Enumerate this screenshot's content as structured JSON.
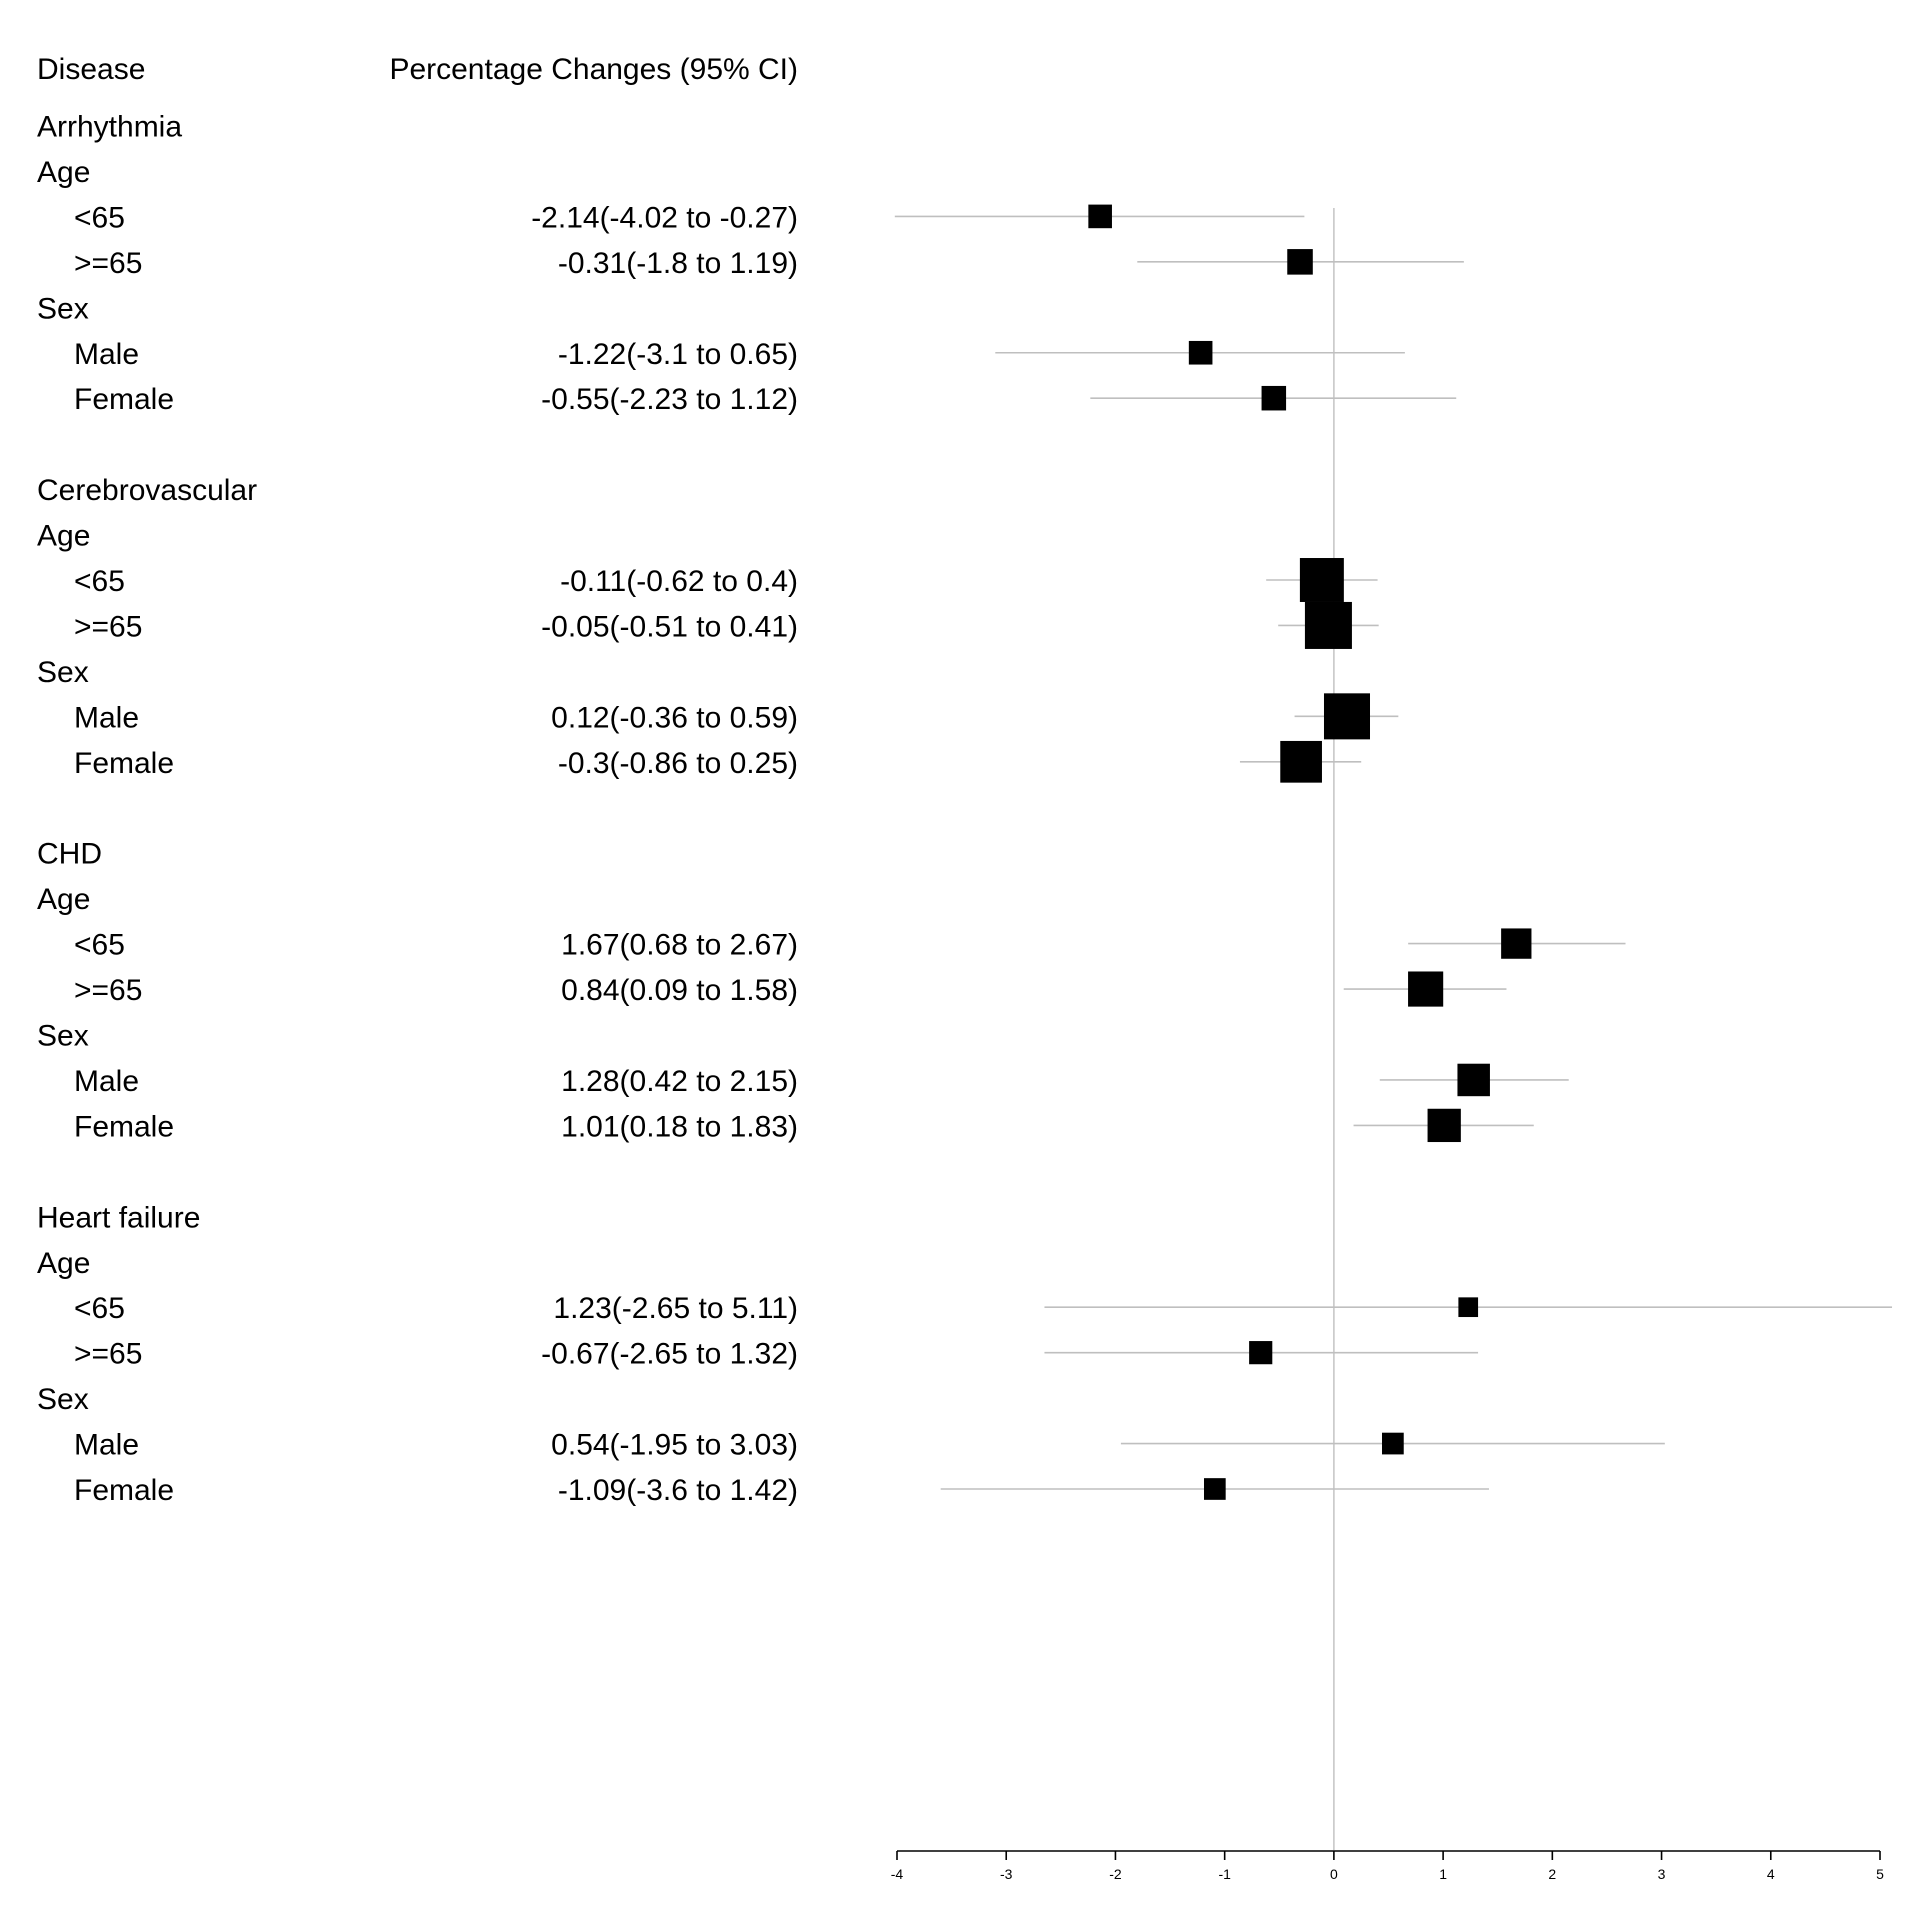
{
  "chart_data": {
    "type": "forest",
    "columns": {
      "label_header": "Disease",
      "estimate_header": "Percentage Changes (95% CI)"
    },
    "rows": [
      {
        "kind": "header",
        "label": "Arrhythmia"
      },
      {
        "kind": "subheader",
        "label": "Age"
      },
      {
        "kind": "item",
        "label": "<65",
        "text": "-2.14(-4.02 to -0.27)",
        "est": -2.14,
        "lo": -4.02,
        "hi": -0.27
      },
      {
        "kind": "item",
        "label": ">=65",
        "text": "-0.31(-1.8 to 1.19)",
        "est": -0.31,
        "lo": -1.8,
        "hi": 1.19
      },
      {
        "kind": "subheader",
        "label": "Sex"
      },
      {
        "kind": "item",
        "label": "Male",
        "text": "-1.22(-3.1 to 0.65)",
        "est": -1.22,
        "lo": -3.1,
        "hi": 0.65
      },
      {
        "kind": "item",
        "label": "Female",
        "text": "-0.55(-2.23 to 1.12)",
        "est": -0.55,
        "lo": -2.23,
        "hi": 1.12
      },
      {
        "kind": "blank"
      },
      {
        "kind": "header",
        "label": "Cerebrovascular"
      },
      {
        "kind": "subheader",
        "label": "Age"
      },
      {
        "kind": "item",
        "label": "<65",
        "text": "-0.11(-0.62 to 0.4)",
        "est": -0.11,
        "lo": -0.62,
        "hi": 0.4
      },
      {
        "kind": "item",
        "label": ">=65",
        "text": "-0.05(-0.51 to 0.41)",
        "est": -0.05,
        "lo": -0.51,
        "hi": 0.41
      },
      {
        "kind": "subheader",
        "label": "Sex"
      },
      {
        "kind": "item",
        "label": "Male",
        "text": "0.12(-0.36 to 0.59)",
        "est": 0.12,
        "lo": -0.36,
        "hi": 0.59
      },
      {
        "kind": "item",
        "label": "Female",
        "text": "-0.3(-0.86 to 0.25)",
        "est": -0.3,
        "lo": -0.86,
        "hi": 0.25
      },
      {
        "kind": "blank"
      },
      {
        "kind": "header",
        "label": "CHD"
      },
      {
        "kind": "subheader",
        "label": "Age"
      },
      {
        "kind": "item",
        "label": "<65",
        "text": "1.67(0.68 to 2.67)",
        "est": 1.67,
        "lo": 0.68,
        "hi": 2.67
      },
      {
        "kind": "item",
        "label": ">=65",
        "text": "0.84(0.09 to 1.58)",
        "est": 0.84,
        "lo": 0.09,
        "hi": 1.58
      },
      {
        "kind": "subheader",
        "label": "Sex"
      },
      {
        "kind": "item",
        "label": "Male",
        "text": "1.28(0.42 to 2.15)",
        "est": 1.28,
        "lo": 0.42,
        "hi": 2.15
      },
      {
        "kind": "item",
        "label": "Female",
        "text": "1.01(0.18 to 1.83)",
        "est": 1.01,
        "lo": 0.18,
        "hi": 1.83
      },
      {
        "kind": "blank"
      },
      {
        "kind": "header",
        "label": "Heart failure"
      },
      {
        "kind": "subheader",
        "label": "Age"
      },
      {
        "kind": "item",
        "label": "<65",
        "text": "1.23(-2.65 to 5.11)",
        "est": 1.23,
        "lo": -2.65,
        "hi": 5.11
      },
      {
        "kind": "item",
        "label": ">=65",
        "text": "-0.67(-2.65 to 1.32)",
        "est": -0.67,
        "lo": -2.65,
        "hi": 1.32
      },
      {
        "kind": "subheader",
        "label": "Sex"
      },
      {
        "kind": "item",
        "label": "Male",
        "text": "0.54(-1.95 to 3.03)",
        "est": 0.54,
        "lo": -1.95,
        "hi": 3.03
      },
      {
        "kind": "item",
        "label": "Female",
        "text": "-1.09(-3.6 to 1.42)",
        "est": -1.09,
        "lo": -3.6,
        "hi": 1.42
      }
    ],
    "x_axis": {
      "ticks": [
        "-4",
        "-3",
        "-2",
        "-1",
        "0",
        "1",
        "2",
        "3",
        "4",
        "5"
      ],
      "range": [
        -4,
        5
      ],
      "reference_line": 0
    },
    "colors": {
      "marker": "#000000",
      "ci_line": "#bfbfbf",
      "reference_line": "#c8c8c8",
      "axis": "#000000"
    }
  }
}
